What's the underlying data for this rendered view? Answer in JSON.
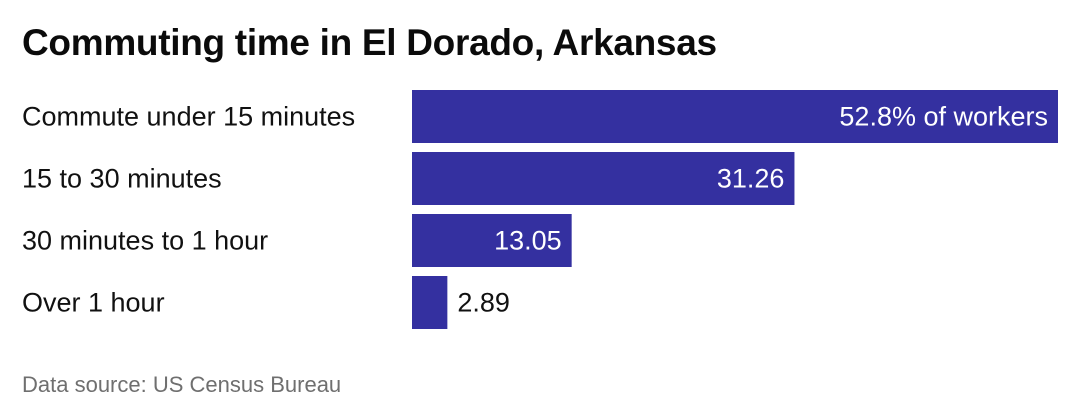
{
  "chart_data": {
    "type": "bar",
    "orientation": "horizontal",
    "title": "Commuting time in El Dorado, Arkansas",
    "categories": [
      "Commute under 15 minutes",
      "15 to 30 minutes",
      "30 minutes to 1 hour",
      "Over 1 hour"
    ],
    "values": [
      52.8,
      31.26,
      13.05,
      2.89
    ],
    "data_labels": [
      "52.8% of workers",
      "31.26",
      "13.05",
      "2.89"
    ],
    "xlim": [
      0,
      52.8
    ],
    "grid": false,
    "legend": "none",
    "bar_color": "#3430a0",
    "source": "Data source: US Census Bureau"
  }
}
